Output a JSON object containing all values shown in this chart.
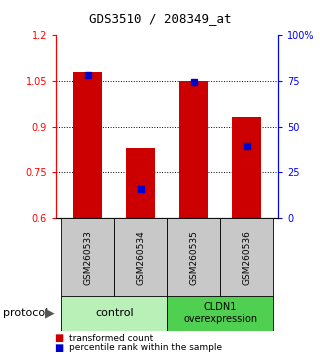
{
  "title": "GDS3510 / 208349_at",
  "samples": [
    "GSM260533",
    "GSM260534",
    "GSM260535",
    "GSM260536"
  ],
  "bar_tops": [
    1.08,
    0.83,
    1.05,
    0.93
  ],
  "bar_bottoms": [
    0.6,
    0.6,
    0.6,
    0.6
  ],
  "bar_color": "#cc0000",
  "blue_marker_vals": [
    1.07,
    0.695,
    1.045,
    0.835
  ],
  "blue_color": "#0000cc",
  "ylim": [
    0.6,
    1.2
  ],
  "right_yticks": [
    0,
    25,
    50,
    75,
    100
  ],
  "right_yticklabels": [
    "0",
    "25",
    "50",
    "75",
    "100%"
  ],
  "left_yticks": [
    0.6,
    0.75,
    0.9,
    1.05,
    1.2
  ],
  "left_yticklabels": [
    "0.6",
    "0.75",
    "0.9",
    "1.05",
    "1.2"
  ],
  "grid_vals": [
    0.75,
    0.9,
    1.05
  ],
  "group_control_label": "control",
  "group_cldn1_label": "CLDN1\noverexpression",
  "group_control_color": "#b8f0b8",
  "group_cldn1_color": "#50d050",
  "protocol_label": "protocol",
  "legend_red_label": "transformed count",
  "legend_blue_label": "percentile rank within the sample",
  "bar_width": 0.55,
  "bar_color_red": "#cc0000",
  "blue_marker_color": "#0000cc",
  "sample_box_color": "#c8c8c8",
  "title_fontsize": 9,
  "tick_fontsize": 7,
  "label_fontsize": 7
}
